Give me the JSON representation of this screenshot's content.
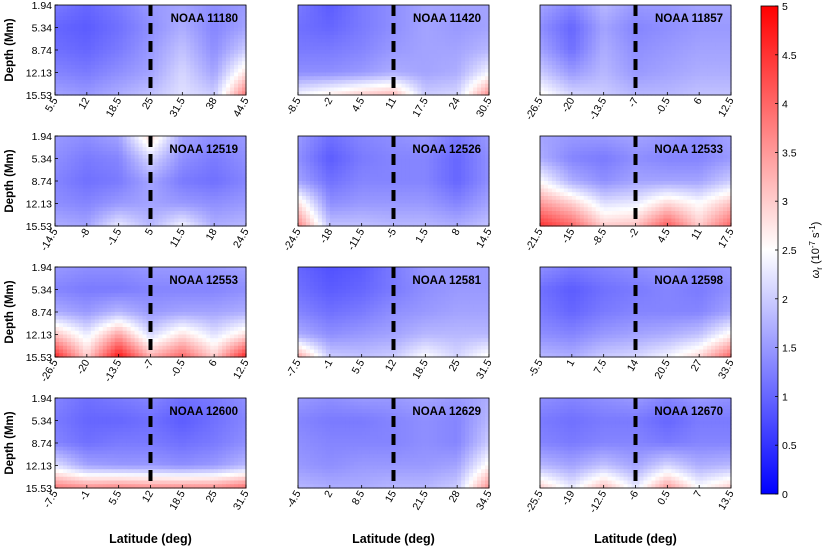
{
  "chart_data": {
    "type": "heatmap",
    "y_axis": {
      "label": "Depth (Mm)",
      "ticks": [
        "1.94",
        "5.34",
        "8.74",
        "12.13",
        "15.53"
      ],
      "range": [
        1.94,
        15.53
      ]
    },
    "x_axis_label": "Latitude (deg)",
    "colorbar": {
      "label": "ω_r (10^-7 s^-1)",
      "label_parts": {
        "symbol": "ω",
        "sub": "r",
        "open": " (10",
        "exp": "-7",
        "unit": " s",
        "unit_exp": "-1",
        "close": ")"
      },
      "range": [
        0,
        5
      ],
      "ticks": [
        "0",
        "0.5",
        "1",
        "1.5",
        "2",
        "2.5",
        "3",
        "3.5",
        "4",
        "4.5",
        "5"
      ],
      "colormap": [
        "#0000ff",
        "#ffffff",
        "#ff0000"
      ]
    },
    "panels": [
      {
        "title": "NOAA 11180",
        "xticks": [
          "5.5",
          "12",
          "18.5",
          "25",
          "31.5",
          "38",
          "44.5"
        ],
        "dashed_at_index": 3,
        "grid": [
          [
            1.2,
            1.0,
            1.2,
            1.5,
            1.6,
            1.4,
            1.5
          ],
          [
            1.0,
            0.9,
            1.1,
            1.4,
            1.7,
            1.3,
            1.6
          ],
          [
            1.1,
            1.0,
            1.2,
            1.5,
            1.9,
            1.4,
            2.0
          ],
          [
            1.3,
            1.2,
            1.4,
            1.6,
            2.1,
            1.6,
            2.8
          ],
          [
            1.6,
            1.5,
            1.7,
            1.9,
            2.2,
            2.0,
            3.8
          ]
        ]
      },
      {
        "title": "NOAA 11420",
        "xticks": [
          "-8.5",
          "-2",
          "4.5",
          "11",
          "17.5",
          "24",
          "30.5"
        ],
        "dashed_at_index": 3,
        "grid": [
          [
            1.2,
            0.9,
            1.2,
            1.4,
            1.6,
            1.6,
            1.6
          ],
          [
            1.1,
            1.0,
            1.2,
            1.4,
            1.6,
            1.5,
            1.6
          ],
          [
            1.2,
            1.2,
            1.3,
            1.5,
            1.6,
            1.6,
            1.8
          ],
          [
            1.4,
            1.4,
            1.5,
            1.7,
            1.6,
            1.7,
            2.4
          ],
          [
            2.4,
            2.7,
            3.0,
            3.2,
            2.0,
            2.1,
            3.6
          ]
        ]
      },
      {
        "title": "NOAA 11857",
        "xticks": [
          "-26.5",
          "-20",
          "-13.5",
          "-7",
          "-0.5",
          "6",
          "12.5"
        ],
        "dashed_at_index": 3,
        "grid": [
          [
            1.6,
            1.3,
            1.8,
            1.5,
            1.5,
            1.6,
            1.6
          ],
          [
            1.4,
            1.0,
            1.6,
            1.3,
            1.4,
            1.5,
            1.5
          ],
          [
            1.6,
            1.1,
            1.7,
            1.4,
            1.5,
            1.6,
            1.6
          ],
          [
            2.0,
            1.5,
            1.8,
            1.5,
            1.6,
            1.7,
            1.7
          ],
          [
            2.6,
            2.1,
            2.0,
            1.8,
            1.8,
            1.9,
            1.9
          ]
        ]
      },
      {
        "title": "NOAA 12519",
        "xticks": [
          "-14.5",
          "-8",
          "-1.5",
          "5",
          "11.5",
          "18",
          "24.5"
        ],
        "dashed_at_index": 3,
        "grid": [
          [
            1.5,
            1.4,
            1.6,
            2.9,
            1.6,
            1.4,
            1.5
          ],
          [
            1.4,
            1.2,
            1.3,
            2.1,
            1.4,
            1.2,
            1.4
          ],
          [
            1.3,
            1.1,
            1.2,
            1.6,
            1.2,
            1.1,
            1.3
          ],
          [
            1.4,
            1.3,
            1.5,
            1.6,
            1.5,
            1.4,
            1.5
          ],
          [
            1.7,
            1.6,
            2.3,
            1.8,
            2.4,
            1.7,
            1.8
          ]
        ]
      },
      {
        "title": "NOAA 12526",
        "xticks": [
          "-24.5",
          "-18",
          "-11.5",
          "-5",
          "1.5",
          "8",
          "14.5"
        ],
        "dashed_at_index": 3,
        "grid": [
          [
            1.5,
            1.1,
            1.3,
            1.4,
            1.5,
            1.2,
            1.5
          ],
          [
            1.4,
            0.9,
            1.2,
            1.3,
            1.3,
            1.0,
            1.4
          ],
          [
            1.6,
            1.1,
            1.3,
            1.3,
            1.3,
            1.0,
            1.4
          ],
          [
            2.8,
            1.4,
            1.5,
            1.5,
            1.5,
            1.3,
            1.6
          ],
          [
            3.7,
            1.9,
            1.9,
            1.8,
            1.8,
            1.7,
            1.9
          ]
        ]
      },
      {
        "title": "NOAA 12533",
        "xticks": [
          "-21.5",
          "-15",
          "-8.5",
          "-2",
          "4.5",
          "11",
          "17.5"
        ],
        "dashed_at_index": 3,
        "grid": [
          [
            1.6,
            1.5,
            1.5,
            1.6,
            1.5,
            1.4,
            1.6
          ],
          [
            1.7,
            1.3,
            1.2,
            1.4,
            1.3,
            1.3,
            1.5
          ],
          [
            2.5,
            1.7,
            1.4,
            1.6,
            1.6,
            1.6,
            2.0
          ],
          [
            3.5,
            3.0,
            2.2,
            2.3,
            2.9,
            2.5,
            3.1
          ],
          [
            4.5,
            4.0,
            3.0,
            3.1,
            4.1,
            3.0,
            4.0
          ]
        ]
      },
      {
        "title": "NOAA 12553",
        "xticks": [
          "-26.5",
          "-20",
          "-13.5",
          "-7",
          "-0.5",
          "6",
          "12.5"
        ],
        "dashed_at_index": 3,
        "grid": [
          [
            1.5,
            1.4,
            1.4,
            1.5,
            1.5,
            1.5,
            1.6
          ],
          [
            1.3,
            1.2,
            1.2,
            1.3,
            1.3,
            1.3,
            1.4
          ],
          [
            1.7,
            1.5,
            1.8,
            1.5,
            1.6,
            1.6,
            1.7
          ],
          [
            3.1,
            2.3,
            3.4,
            2.1,
            2.8,
            2.2,
            2.8
          ],
          [
            4.6,
            3.0,
            4.8,
            3.3,
            4.0,
            3.0,
            4.6
          ]
        ]
      },
      {
        "title": "NOAA 12581",
        "xticks": [
          "-7.5",
          "-1",
          "5.5",
          "12",
          "18.5",
          "25",
          "31.5"
        ],
        "dashed_at_index": 3,
        "grid": [
          [
            1.0,
            0.8,
            0.9,
            1.2,
            1.5,
            1.5,
            1.5
          ],
          [
            1.1,
            0.9,
            1.0,
            1.2,
            1.4,
            1.5,
            1.5
          ],
          [
            1.3,
            1.1,
            1.2,
            1.4,
            1.5,
            1.6,
            1.6
          ],
          [
            1.7,
            1.4,
            1.5,
            1.6,
            1.8,
            1.8,
            1.8
          ],
          [
            3.4,
            2.0,
            1.9,
            2.0,
            2.5,
            2.1,
            2.6
          ]
        ]
      },
      {
        "title": "NOAA 12598",
        "xticks": [
          "-5.5",
          "1",
          "7.5",
          "14",
          "20.5",
          "27",
          "33.5"
        ],
        "dashed_at_index": 3,
        "grid": [
          [
            1.4,
            1.2,
            1.3,
            1.4,
            1.5,
            1.4,
            1.5
          ],
          [
            1.1,
            0.9,
            1.1,
            1.2,
            1.3,
            1.2,
            1.4
          ],
          [
            1.2,
            1.0,
            1.2,
            1.3,
            1.3,
            1.3,
            1.6
          ],
          [
            1.4,
            1.3,
            1.5,
            1.6,
            1.7,
            1.9,
            2.6
          ],
          [
            1.8,
            1.7,
            2.0,
            2.1,
            2.4,
            2.9,
            4.0
          ]
        ]
      },
      {
        "title": "NOAA 12600",
        "xticks": [
          "-7.5",
          "-1",
          "5.5",
          "12",
          "18.5",
          "25",
          "31.5"
        ],
        "dashed_at_index": 3,
        "grid": [
          [
            1.3,
            1.1,
            1.2,
            1.3,
            1.1,
            1.2,
            1.4
          ],
          [
            1.2,
            1.0,
            1.0,
            1.1,
            0.9,
            1.1,
            1.3
          ],
          [
            1.3,
            1.1,
            1.2,
            1.2,
            1.1,
            1.2,
            1.4
          ],
          [
            2.2,
            1.6,
            1.5,
            1.5,
            1.4,
            1.5,
            1.8
          ],
          [
            3.8,
            3.6,
            3.7,
            3.6,
            3.6,
            3.6,
            3.9
          ]
        ]
      },
      {
        "title": "NOAA 12629",
        "xticks": [
          "-4.5",
          "2",
          "8.5",
          "15",
          "21.5",
          "28",
          "34.5"
        ],
        "dashed_at_index": 3,
        "grid": [
          [
            1.5,
            1.4,
            1.5,
            1.5,
            1.6,
            1.5,
            1.7
          ],
          [
            1.3,
            1.2,
            1.2,
            1.3,
            1.4,
            1.3,
            1.8
          ],
          [
            1.4,
            1.3,
            1.3,
            1.3,
            1.4,
            1.3,
            2.0
          ],
          [
            1.5,
            1.4,
            1.5,
            1.5,
            1.5,
            1.6,
            2.6
          ],
          [
            1.8,
            1.7,
            1.7,
            1.8,
            1.8,
            2.0,
            3.6
          ]
        ]
      },
      {
        "title": "NOAA 12670",
        "xticks": [
          "-25.5",
          "-19",
          "-12.5",
          "-6",
          "0.5",
          "7",
          "13.5"
        ],
        "dashed_at_index": 3,
        "grid": [
          [
            1.4,
            1.3,
            1.4,
            1.5,
            1.3,
            1.5,
            1.4
          ],
          [
            1.2,
            1.1,
            1.2,
            1.2,
            1.0,
            1.2,
            1.2
          ],
          [
            1.3,
            1.2,
            1.3,
            1.3,
            1.2,
            1.3,
            1.3
          ],
          [
            1.8,
            1.6,
            1.9,
            1.6,
            2.1,
            1.7,
            1.8
          ],
          [
            3.0,
            2.3,
            3.2,
            2.3,
            3.5,
            2.5,
            3.0
          ]
        ]
      }
    ]
  }
}
